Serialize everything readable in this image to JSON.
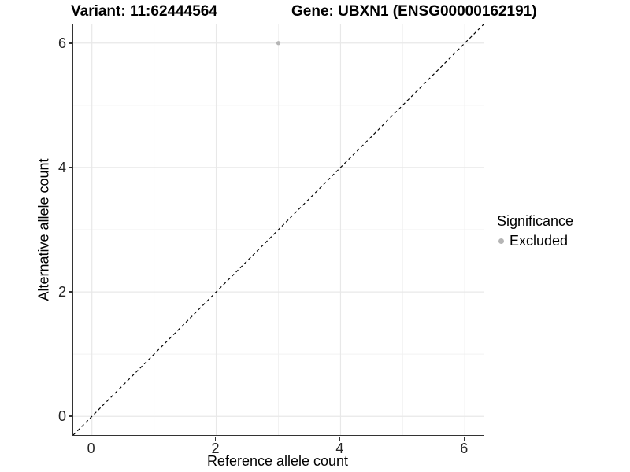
{
  "chart_data": {
    "type": "scatter",
    "title_left": "Variant: 11:62444564",
    "title_right": "Gene: UBXN1 (ENSG00000162191)",
    "xlabel": "Reference allele count",
    "ylabel": "Alternative allele count",
    "xlim": [
      -0.3,
      6.3
    ],
    "ylim": [
      -0.3,
      6.3
    ],
    "x_major_ticks": [
      0,
      2,
      4,
      6
    ],
    "y_major_ticks": [
      0,
      2,
      4,
      6
    ],
    "x_minor_ticks": [
      1,
      3,
      5
    ],
    "y_minor_ticks": [
      1,
      3,
      5
    ],
    "grid": "major+minor",
    "reference_line": {
      "type": "identity-abline",
      "slope": 1,
      "intercept": 0,
      "style": "dashed",
      "color": "#000000"
    },
    "series": [
      {
        "name": "Excluded",
        "color": "#b5b5b5",
        "points": [
          [
            3,
            6
          ]
        ]
      }
    ],
    "legend": {
      "title": "Significance",
      "position": "right",
      "items": [
        {
          "label": "Excluded",
          "color": "#b5b5b5",
          "marker": "circle"
        }
      ]
    }
  },
  "colors": {
    "axis_line": "#333333",
    "grid_major": "#e8e8e8",
    "grid_minor": "#f2f2f2",
    "tick_text": "#262626",
    "point": "#b5b5b5",
    "background": "#ffffff"
  }
}
